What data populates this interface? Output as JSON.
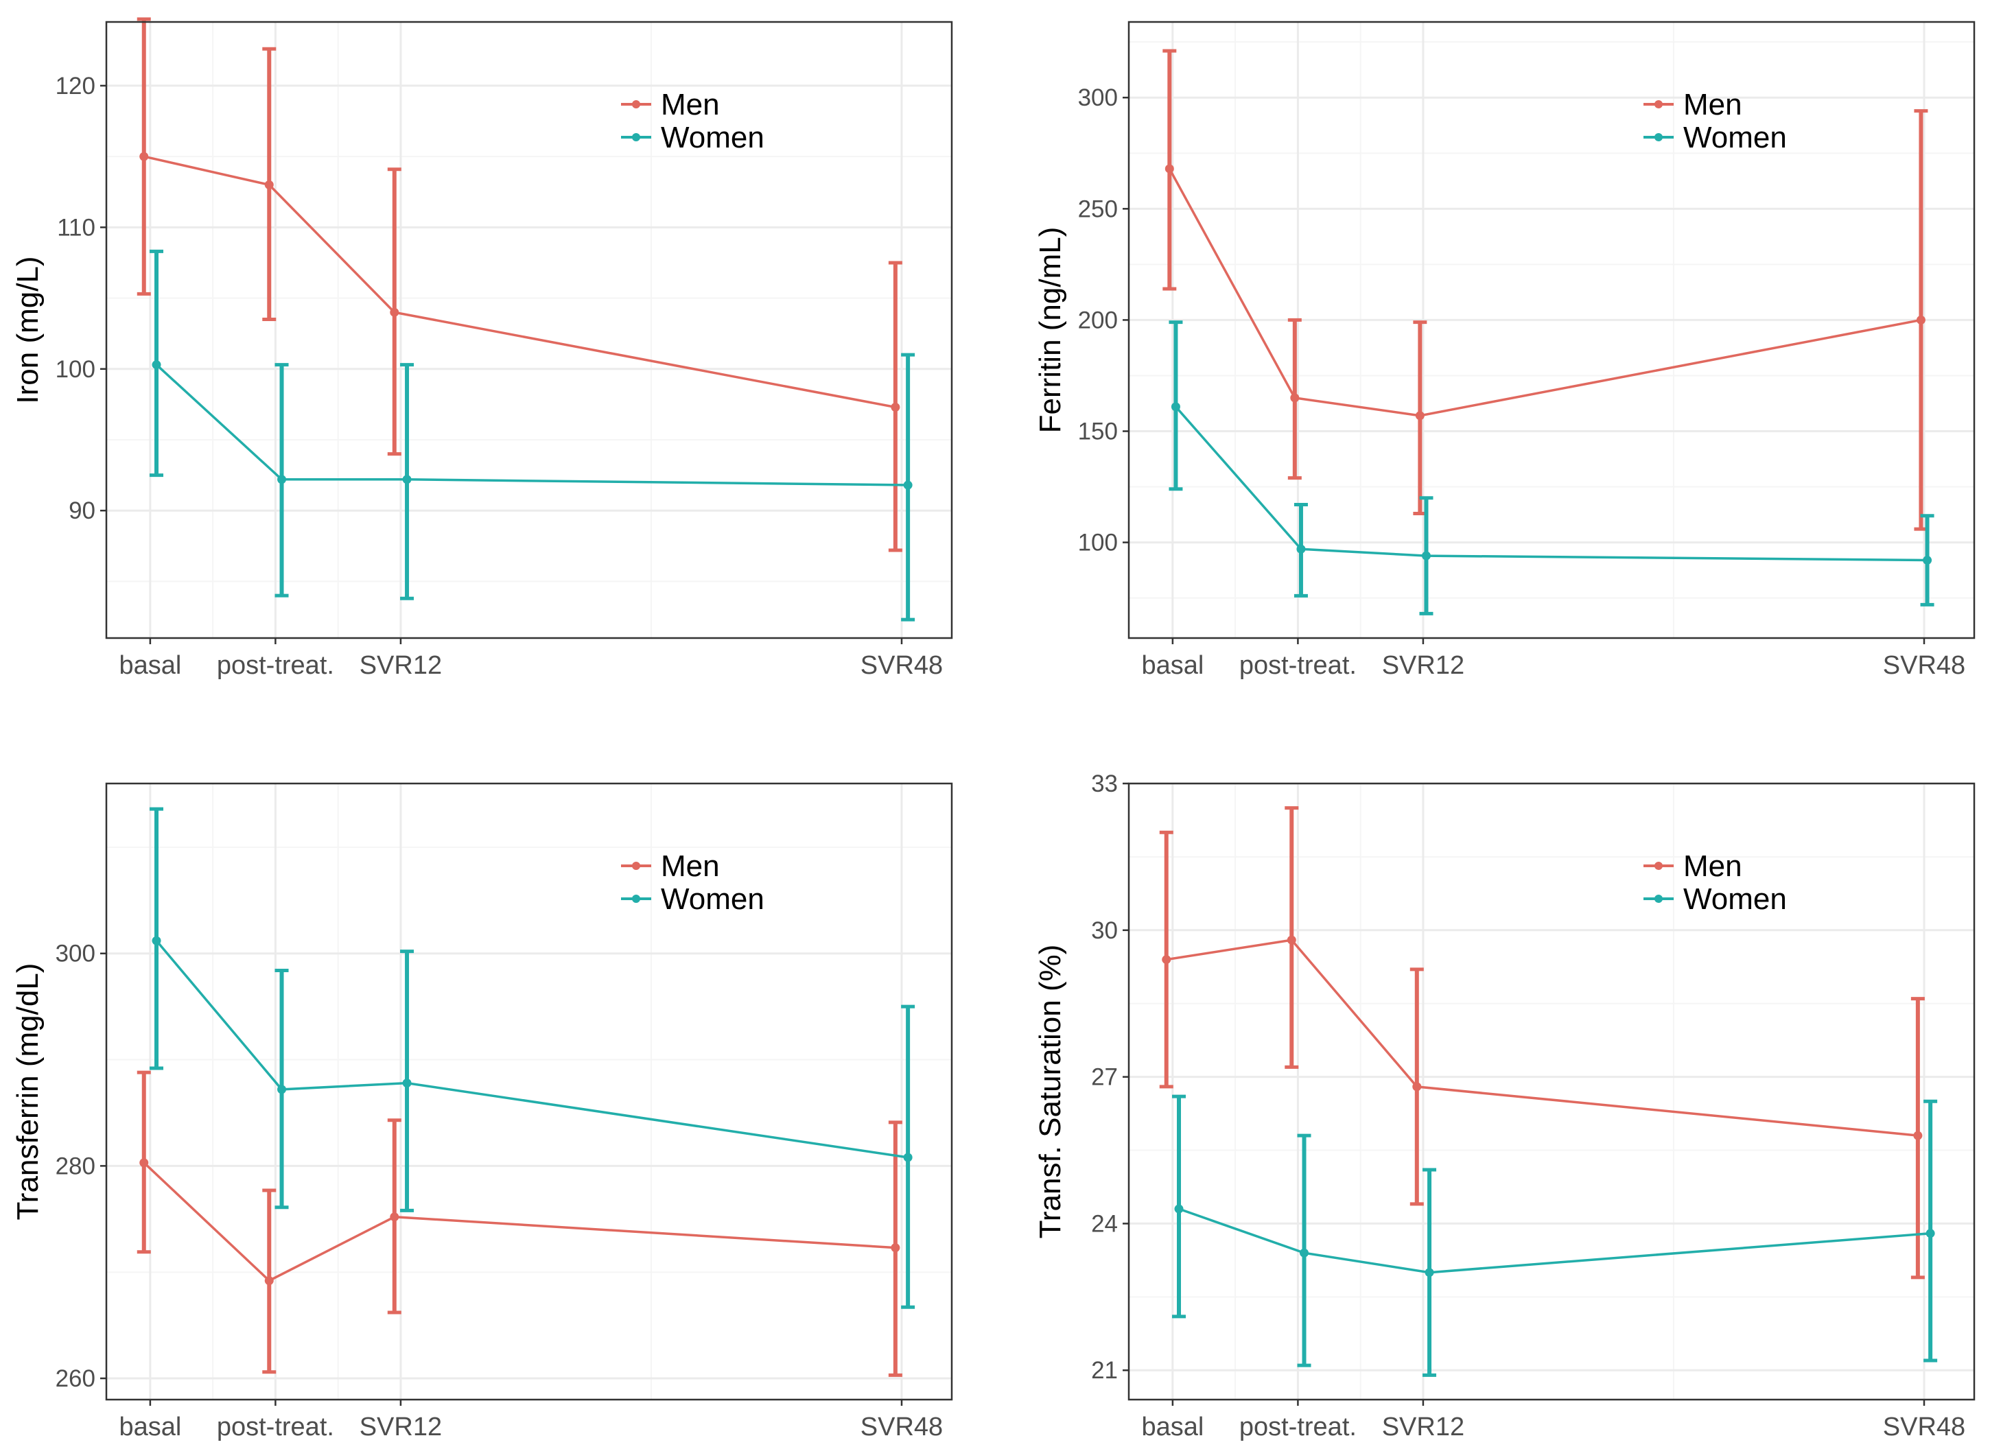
{
  "colors": {
    "men": "#e0685e",
    "women": "#22aeaa",
    "panel_border": "#333333",
    "grid_major": "#ebebeb",
    "grid_minor": "#f5f5f5",
    "tick_label": "#4d4d4d",
    "axis_title": "#000000"
  },
  "chart_data": [
    {
      "id": "iron",
      "type": "line",
      "title": "",
      "xlabel": "",
      "ylabel": "Iron (mg/L)",
      "categories": [
        "basal",
        "post-treat.",
        "SVR12",
        "SVR48"
      ],
      "x": [
        0,
        12,
        24,
        72
      ],
      "xlim": [
        -4.2,
        76.8
      ],
      "ylim": [
        81,
        124.5
      ],
      "yticks": [
        90,
        100,
        110,
        120
      ],
      "ytick_labels": [
        "90",
        "100",
        "110",
        "120"
      ],
      "legend": {
        "position": "top-right",
        "entries": [
          "Men",
          "Women"
        ]
      },
      "series": [
        {
          "name": "Men",
          "color_key": "men",
          "offset": -0.6,
          "values": [
            115,
            113,
            104,
            97.3
          ],
          "lower": [
            105.3,
            103.5,
            94,
            87.2
          ],
          "upper": [
            124.7,
            122.6,
            114.1,
            107.5
          ]
        },
        {
          "name": "Women",
          "color_key": "women",
          "offset": 0.6,
          "values": [
            100.3,
            92.2,
            92.2,
            91.8
          ],
          "lower": [
            92.5,
            84,
            83.8,
            82.3
          ],
          "upper": [
            108.3,
            100.3,
            100.3,
            101
          ]
        }
      ]
    },
    {
      "id": "ferritin",
      "type": "line",
      "title": "",
      "xlabel": "",
      "ylabel": "Ferritin (ng/mL)",
      "categories": [
        "basal",
        "post-treat.",
        "SVR12",
        "SVR48"
      ],
      "x": [
        0,
        12,
        24,
        72
      ],
      "xlim": [
        -4.2,
        76.8
      ],
      "ylim": [
        57,
        334
      ],
      "yticks": [
        100,
        150,
        200,
        250,
        300
      ],
      "ytick_labels": [
        "100",
        "150",
        "200",
        "250",
        "300"
      ],
      "legend": {
        "position": "top-right",
        "entries": [
          "Men",
          "Women"
        ]
      },
      "series": [
        {
          "name": "Men",
          "color_key": "men",
          "offset": -0.3,
          "values": [
            268,
            165,
            157,
            200
          ],
          "lower": [
            214,
            129,
            113,
            106
          ],
          "upper": [
            321,
            200,
            199,
            294
          ]
        },
        {
          "name": "Women",
          "color_key": "women",
          "offset": 0.3,
          "values": [
            161,
            97,
            94,
            92
          ],
          "lower": [
            124,
            76,
            68,
            72
          ],
          "upper": [
            199,
            117,
            120,
            112
          ]
        }
      ]
    },
    {
      "id": "transferrin",
      "type": "line",
      "title": "",
      "xlabel": "",
      "ylabel": "Transferrin (mg/dL)",
      "categories": [
        "basal",
        "post-treat.",
        "SVR12",
        "SVR48"
      ],
      "x": [
        0,
        12,
        24,
        72
      ],
      "xlim": [
        -4.2,
        76.8
      ],
      "ylim": [
        258,
        316
      ],
      "yticks": [
        260,
        280,
        300
      ],
      "ytick_labels": [
        "260",
        "280",
        "300"
      ],
      "legend": {
        "position": "top-right",
        "entries": [
          "Men",
          "Women"
        ]
      },
      "series": [
        {
          "name": "Men",
          "color_key": "men",
          "offset": -0.6,
          "values": [
            280.3,
            269.2,
            275.2,
            272.3
          ],
          "lower": [
            271.9,
            260.6,
            266.2,
            260.3
          ],
          "upper": [
            288.8,
            277.7,
            284.3,
            284.1
          ]
        },
        {
          "name": "Women",
          "color_key": "women",
          "offset": 0.6,
          "values": [
            301.2,
            287.2,
            287.8,
            280.8
          ],
          "lower": [
            289.2,
            276.1,
            275.8,
            266.7
          ],
          "upper": [
            313.6,
            298.4,
            300.2,
            295
          ]
        }
      ]
    },
    {
      "id": "saturation",
      "type": "line",
      "title": "",
      "xlabel": "",
      "ylabel": "Transf. Saturation (%)",
      "categories": [
        "basal",
        "post-treat.",
        "SVR12",
        "SVR48"
      ],
      "x": [
        0,
        12,
        24,
        72
      ],
      "xlim": [
        -4.2,
        76.8
      ],
      "ylim": [
        20.4,
        33
      ],
      "yticks": [
        21,
        24,
        27,
        30,
        33
      ],
      "ytick_labels": [
        "21",
        "24",
        "27",
        "30",
        "33"
      ],
      "legend": {
        "position": "top-right",
        "entries": [
          "Men",
          "Women"
        ]
      },
      "series": [
        {
          "name": "Men",
          "color_key": "men",
          "offset": -0.6,
          "values": [
            29.4,
            29.8,
            26.8,
            25.8
          ],
          "lower": [
            26.8,
            27.2,
            24.4,
            22.9
          ],
          "upper": [
            32,
            32.5,
            29.2,
            28.6
          ]
        },
        {
          "name": "Women",
          "color_key": "women",
          "offset": 0.6,
          "values": [
            24.3,
            23.4,
            23,
            23.8
          ],
          "lower": [
            22.1,
            21.1,
            20.9,
            21.2
          ],
          "upper": [
            26.6,
            25.8,
            25.1,
            26.5
          ]
        }
      ]
    }
  ]
}
